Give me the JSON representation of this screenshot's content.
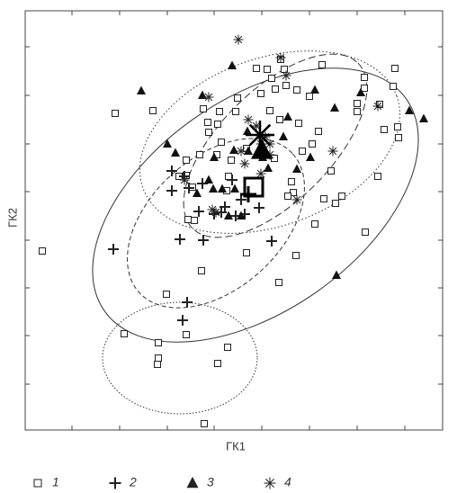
{
  "chart_data": {
    "type": "scatter",
    "xlabel": "ГК1",
    "ylabel": "ГК2",
    "xlim": [
      0,
      464
    ],
    "ylim": [
      0,
      466
    ],
    "xticks": [
      52,
      105,
      158,
      210,
      263,
      316,
      369,
      422
    ],
    "yticks": [
      51,
      105,
      158,
      211,
      265,
      318,
      372,
      426
    ],
    "series": [
      {
        "name": "1",
        "marker": "square",
        "color": "#222222",
        "centroid": [
          254,
          270
        ],
        "x": [
          19,
          100,
          142,
          110,
          157,
          148,
          179,
          148,
          147,
          225,
          214,
          199,
          196,
          188,
          181,
          224,
          246,
          282,
          301,
          322,
          352,
          345,
          378,
          392,
          415,
          414,
          399,
          409,
          411,
          394,
          369,
          377,
          377,
          369,
          330,
          284,
          288,
          269,
          257,
          274,
          278,
          290,
          302,
          304,
          326,
          319,
          308,
          296,
          298,
          292,
          277,
          272,
          262,
          236,
          234,
          216,
          203,
          204,
          218,
          213,
          194,
          179,
          179,
          186,
          171,
          246,
          229,
          226,
          198,
          214,
          283,
          316,
          340,
          332
        ],
        "y": [
          199,
          352,
          355,
          107,
          151,
          97,
          106,
          80,
          73,
          92,
          74,
          7,
          177,
          233,
          234,
          266,
          197,
          164,
          194,
          229,
          260,
          252,
          220,
          282,
          325,
          337,
          334,
          382,
          402,
          362,
          354,
          392,
          380,
          363,
          406,
          412,
          401,
          401,
          402,
          391,
          379,
          383,
          378,
          341,
          332,
          318,
          310,
          276,
          264,
          260,
          302,
          355,
          374,
          369,
          354,
          354,
          342,
          331,
          320,
          306,
          306,
          300,
          283,
          270,
          282,
          313,
          300,
          282,
          357,
          340,
          345,
          371,
          288,
          257
        ]
      },
      {
        "name": "2",
        "marker": "plus",
        "color": "#222222",
        "centroid": [
          248,
          262
        ],
        "x": [
          98,
          163,
          177,
          163,
          182,
          197,
          193,
          210,
          218,
          234,
          244,
          260,
          274,
          198,
          172,
          180,
          175,
          230,
          240,
          222
        ],
        "y": [
          201,
          288,
          282,
          266,
          269,
          274,
          243,
          240,
          242,
          238,
          240,
          247,
          210,
          211,
          212,
          142,
          122,
          278,
          256,
          248
        ]
      },
      {
        "name": "3",
        "marker": "triangle",
        "color": "#111111",
        "centroid": [
          263,
          311
        ],
        "x": [
          129,
          230,
          197,
          292,
          344,
          373,
          427,
          443,
          346,
          302,
          317,
          287,
          270,
          264,
          248,
          232,
          210,
          158,
          191,
          209,
          219,
          226,
          240,
          233,
          204,
          167,
          322,
          247
        ],
        "y": [
          377,
          405,
          372,
          348,
          358,
          375,
          355,
          346,
          172,
          290,
          303,
          326,
          291,
          303,
          310,
          311,
          303,
          318,
          263,
          268,
          268,
          238,
          238,
          268,
          278,
          308,
          378,
          332
        ]
      },
      {
        "name": "4",
        "marker": "asterisk",
        "color": "#222222",
        "centroid": [
          261,
          328
        ],
        "x": [
          237,
          284,
          290,
          204,
          248,
          257,
          267,
          262,
          244,
          240,
          272,
          262,
          302,
          342,
          392,
          212,
          208,
          177,
          272
        ],
        "y": [
          434,
          414,
          394,
          370,
          345,
          338,
          326,
          318,
          296,
          310,
          306,
          285,
          256,
          310,
          360,
          242,
          245,
          278,
          318
        ]
      }
    ]
  }
}
